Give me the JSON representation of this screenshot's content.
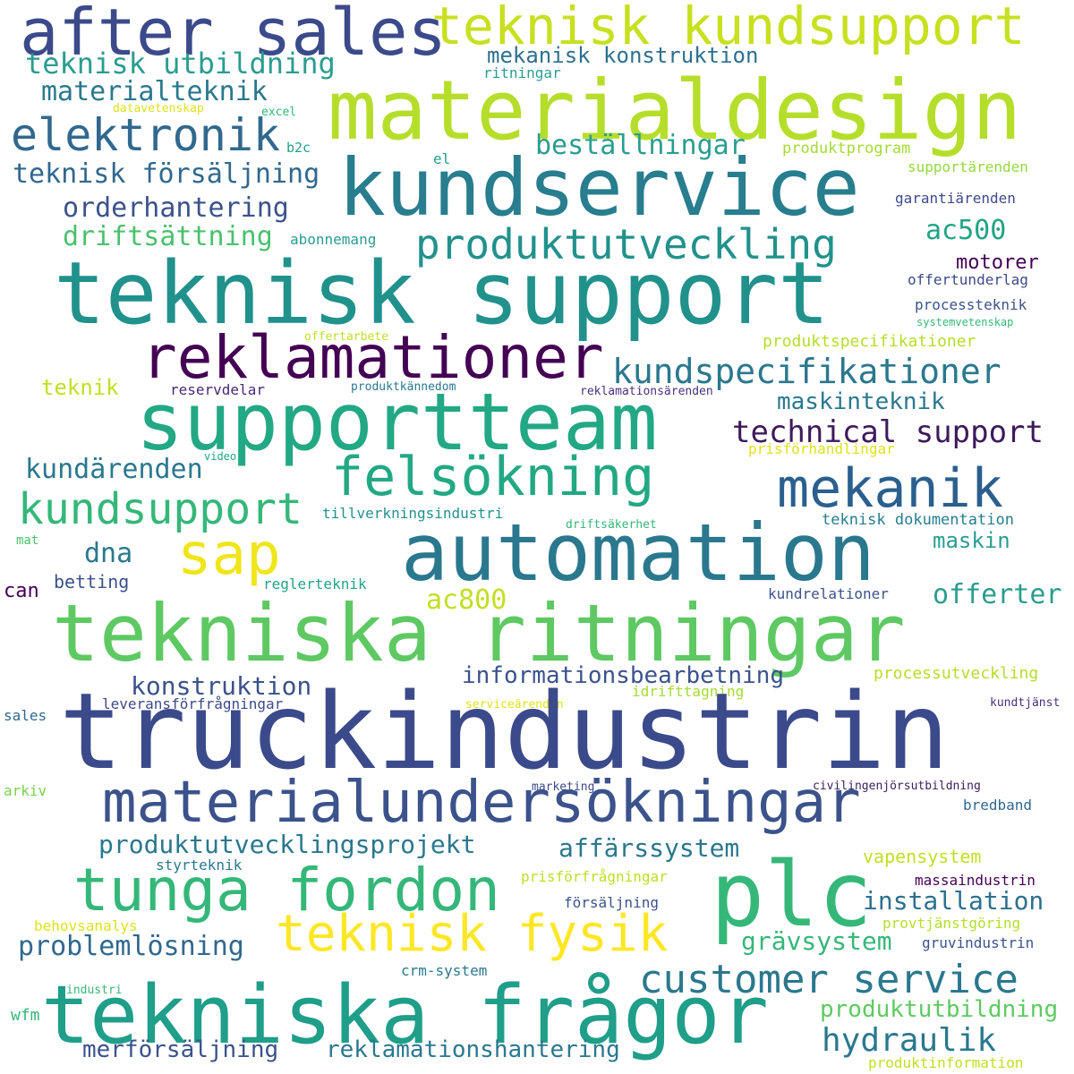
{
  "words": [
    {
      "text": "after sales",
      "color": "#3b4a8a"
    },
    {
      "text": "teknisk kundsupport",
      "color": "#c7e020"
    },
    {
      "text": "materialdesign",
      "color": "#b5de2b"
    },
    {
      "text": "teknisk utbildning",
      "color": "#2a9d8f"
    },
    {
      "text": "mekanisk konstruktion",
      "color": "#2d708e"
    },
    {
      "text": "ritningar",
      "color": "#2a9d8f"
    },
    {
      "text": "materialteknik",
      "color": "#2a788e"
    },
    {
      "text": "elektronik",
      "color": "#31688e"
    },
    {
      "text": "datavetenskap",
      "color": "#dde318"
    },
    {
      "text": "excel",
      "color": "#35b779"
    },
    {
      "text": "b2c",
      "color": "#20a386"
    },
    {
      "text": "beställningar",
      "color": "#2a9d8f"
    },
    {
      "text": "produktprogram",
      "color": "#a5db36"
    },
    {
      "text": "kundservice",
      "color": "#287d8e"
    },
    {
      "text": "teknisk försäljning",
      "color": "#31688e"
    },
    {
      "text": "el",
      "color": "#1f9e89"
    },
    {
      "text": "supportärenden",
      "color": "#95d840"
    },
    {
      "text": "garantiärenden",
      "color": "#3e4a89"
    },
    {
      "text": "orderhantering",
      "color": "#3b528b"
    },
    {
      "text": "driftsättning",
      "color": "#4ac16d"
    },
    {
      "text": "abonnemang",
      "color": "#2a9d8f"
    },
    {
      "text": "produktutveckling",
      "color": "#21918c"
    },
    {
      "text": "ac500",
      "color": "#20a386"
    },
    {
      "text": "teknisk support",
      "color": "#21918c"
    },
    {
      "text": "motorer",
      "color": "#440154"
    },
    {
      "text": "offertunderlag",
      "color": "#3e4a89"
    },
    {
      "text": "processteknik",
      "color": "#3b528b"
    },
    {
      "text": "systemvetenskap",
      "color": "#35b779"
    },
    {
      "text": "offertarbete",
      "color": "#bddf26"
    },
    {
      "text": "produktspecifikationer",
      "color": "#b5de2b"
    },
    {
      "text": "reklamationer",
      "color": "#440154"
    },
    {
      "text": "kundspecifikationer",
      "color": "#2a788e"
    },
    {
      "text": "teknik",
      "color": "#c2df23"
    },
    {
      "text": "reservdelar",
      "color": "#482878"
    },
    {
      "text": "produktkännedom",
      "color": "#2a788e"
    },
    {
      "text": "reklamationsärenden",
      "color": "#46327e"
    },
    {
      "text": "maskinteknik",
      "color": "#2a788e"
    },
    {
      "text": "supportteam",
      "color": "#22a884"
    },
    {
      "text": "technical support",
      "color": "#3e1a5c"
    },
    {
      "text": "video",
      "color": "#20a386"
    },
    {
      "text": "prisförhandlingar",
      "color": "#dde318"
    },
    {
      "text": "kundärenden",
      "color": "#2a788e"
    },
    {
      "text": "felsökning",
      "color": "#22a884"
    },
    {
      "text": "mekanik",
      "color": "#2a5f8e"
    },
    {
      "text": "kundsupport",
      "color": "#35b779"
    },
    {
      "text": "tillverkningsindustri",
      "color": "#21918c"
    },
    {
      "text": "teknisk dokumentation",
      "color": "#287d8e"
    },
    {
      "text": "driftsäkerhet",
      "color": "#35b779"
    },
    {
      "text": "mat",
      "color": "#4ac16d"
    },
    {
      "text": "sap",
      "color": "#f0e51a"
    },
    {
      "text": "dna",
      "color": "#2a788e"
    },
    {
      "text": "automation",
      "color": "#2a788e"
    },
    {
      "text": "maskin",
      "color": "#2a9d8f"
    },
    {
      "text": "can",
      "color": "#440154"
    },
    {
      "text": "betting",
      "color": "#3b528b"
    },
    {
      "text": "reglerteknik",
      "color": "#20a386"
    },
    {
      "text": "kundrelationer",
      "color": "#3b528b"
    },
    {
      "text": "offerter",
      "color": "#2a9d8f"
    },
    {
      "text": "ac800",
      "color": "#c2df23"
    },
    {
      "text": "tekniska ritningar",
      "color": "#5ec962"
    },
    {
      "text": "informationsbearbetning",
      "color": "#3b528b"
    },
    {
      "text": "konstruktion",
      "color": "#3b528b"
    },
    {
      "text": "processutveckling",
      "color": "#b5de2b"
    },
    {
      "text": "idrifttagning",
      "color": "#a5db36"
    },
    {
      "text": "leveransförfrågningar",
      "color": "#3e4a89"
    },
    {
      "text": "sales",
      "color": "#31688e"
    },
    {
      "text": "serviceärenden",
      "color": "#dde318"
    },
    {
      "text": "kundtjänst",
      "color": "#46327e"
    },
    {
      "text": "truckindustrin",
      "color": "#3b4a8a"
    },
    {
      "text": "arkiv",
      "color": "#7ad151"
    },
    {
      "text": "marketing",
      "color": "#3e4a89"
    },
    {
      "text": "civilingenjörsutbildning",
      "color": "#3b1f5c"
    },
    {
      "text": "materialundersökningar",
      "color": "#3b528b"
    },
    {
      "text": "bredband",
      "color": "#31688e"
    },
    {
      "text": "produktutvecklingsprojekt",
      "color": "#2a788e"
    },
    {
      "text": "affärssystem",
      "color": "#2a788e"
    },
    {
      "text": "vapensystem",
      "color": "#c2df23"
    },
    {
      "text": "styrteknik",
      "color": "#2a788e"
    },
    {
      "text": "tunga fordon",
      "color": "#35b779"
    },
    {
      "text": "plc",
      "color": "#35b779"
    },
    {
      "text": "prisförfrågningar",
      "color": "#bddf26"
    },
    {
      "text": "massaindustrin",
      "color": "#440154"
    },
    {
      "text": "behovsanalys",
      "color": "#dde318"
    },
    {
      "text": "försäljning",
      "color": "#3b528b"
    },
    {
      "text": "installation",
      "color": "#2d708e"
    },
    {
      "text": "provtjänstgöring",
      "color": "#b5de2b"
    },
    {
      "text": "problemlösning",
      "color": "#31688e"
    },
    {
      "text": "teknisk fysik",
      "color": "#fde725"
    },
    {
      "text": "grävsystem",
      "color": "#35b779"
    },
    {
      "text": "gruvindustrin",
      "color": "#3b528b"
    },
    {
      "text": "crm-system",
      "color": "#2a788e"
    },
    {
      "text": "customer service",
      "color": "#2a788e"
    },
    {
      "text": "industri",
      "color": "#35b779"
    },
    {
      "text": "wfm",
      "color": "#35b779"
    },
    {
      "text": "tekniska frågor",
      "color": "#1f9e89"
    },
    {
      "text": "produktutbildning",
      "color": "#5ec962"
    },
    {
      "text": "hydraulik",
      "color": "#2a788e"
    },
    {
      "text": "merförsäljning",
      "color": "#3b528b"
    },
    {
      "text": "reklamationshantering",
      "color": "#2a788e"
    },
    {
      "text": "produktinformation",
      "color": "#c2df23"
    }
  ]
}
